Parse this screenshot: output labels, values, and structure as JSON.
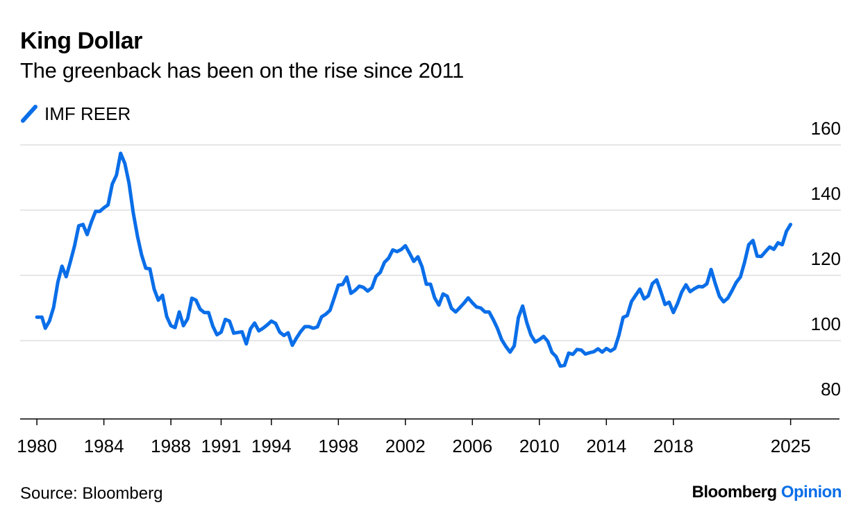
{
  "title": "King Dollar",
  "subtitle": "The greenback has been on the rise since 2011",
  "source": "Source: Bloomberg",
  "brand": {
    "name": "Bloomberg",
    "section": "Opinion"
  },
  "colors": {
    "series": "#0a6ee8",
    "grid": "#e6e6e6",
    "axis": "#000000",
    "brand_accent": "#0a6ee8"
  },
  "chart_data": {
    "type": "line",
    "title": "King Dollar",
    "subtitle": "The greenback has been on the rise since 2011",
    "xlabel": "",
    "ylabel": "",
    "xlim": [
      1979,
      2028
    ],
    "ylim": [
      76,
      164
    ],
    "yticks": [
      160,
      140,
      120,
      100,
      80
    ],
    "y_axis_side": "right",
    "xticks": [
      {
        "value": 1980,
        "label": "1980"
      },
      {
        "value": 1984,
        "label": "1984"
      },
      {
        "value": 1988,
        "label": "1988"
      },
      {
        "value": 1991,
        "label": "1991"
      },
      {
        "value": 1994,
        "label": "1994"
      },
      {
        "value": 1998,
        "label": "1998"
      },
      {
        "value": 2002,
        "label": "2002"
      },
      {
        "value": 2006,
        "label": "2006"
      },
      {
        "value": 2010,
        "label": "2010"
      },
      {
        "value": 2014,
        "label": "2014"
      },
      {
        "value": 2018,
        "label": "2018"
      },
      {
        "value": 2025,
        "label": "2025"
      }
    ],
    "grid": true,
    "legend": {
      "position": "top-left",
      "entries": [
        "IMF REER"
      ]
    },
    "series": [
      {
        "name": "IMF REER",
        "x": [
          1980.0,
          1980.3,
          1980.5,
          1980.75,
          1981.0,
          1981.25,
          1981.5,
          1981.75,
          1982.0,
          1982.25,
          1982.5,
          1982.75,
          1983.0,
          1983.25,
          1983.5,
          1983.75,
          1984.0,
          1984.25,
          1984.5,
          1984.75,
          1985.0,
          1985.25,
          1985.5,
          1985.75,
          1986.0,
          1986.25,
          1986.5,
          1986.75,
          1987.0,
          1987.25,
          1987.5,
          1987.75,
          1988.0,
          1988.25,
          1988.5,
          1988.75,
          1989.0,
          1989.25,
          1989.5,
          1989.75,
          1990.0,
          1990.25,
          1990.5,
          1990.75,
          1991.0,
          1991.25,
          1991.5,
          1991.75,
          1992.0,
          1992.25,
          1992.5,
          1992.75,
          1993.0,
          1993.25,
          1993.5,
          1993.75,
          1994.0,
          1994.25,
          1994.5,
          1994.75,
          1995.0,
          1995.25,
          1995.5,
          1995.75,
          1996.0,
          1996.25,
          1996.5,
          1996.75,
          1997.0,
          1997.25,
          1997.5,
          1997.75,
          1998.0,
          1998.25,
          1998.5,
          1998.75,
          1999.0,
          1999.25,
          1999.5,
          1999.75,
          2000.0,
          2000.25,
          2000.5,
          2000.75,
          2001.0,
          2001.25,
          2001.5,
          2001.75,
          2002.0,
          2002.25,
          2002.5,
          2002.75,
          2003.0,
          2003.25,
          2003.5,
          2003.75,
          2004.0,
          2004.25,
          2004.5,
          2004.75,
          2005.0,
          2005.25,
          2005.5,
          2005.75,
          2006.0,
          2006.25,
          2006.5,
          2006.75,
          2007.0,
          2007.25,
          2007.5,
          2007.75,
          2008.0,
          2008.25,
          2008.5,
          2008.75,
          2009.0,
          2009.25,
          2009.5,
          2009.75,
          2010.0,
          2010.25,
          2010.5,
          2010.75,
          2011.0,
          2011.25,
          2011.5,
          2011.75,
          2012.0,
          2012.25,
          2012.5,
          2012.75,
          2013.0,
          2013.25,
          2013.5,
          2013.75,
          2014.0,
          2014.25,
          2014.5,
          2014.75,
          2015.0,
          2015.25,
          2015.5,
          2015.75,
          2016.0,
          2016.25,
          2016.5,
          2016.75,
          2017.0,
          2017.25,
          2017.5,
          2017.75,
          2018.0,
          2018.25,
          2018.5,
          2018.75,
          2019.0,
          2019.25,
          2019.5,
          2019.75,
          2020.0,
          2020.25,
          2020.5,
          2020.75,
          2021.0,
          2021.25,
          2021.5,
          2021.75,
          2022.0,
          2022.25,
          2022.5,
          2022.75,
          2023.0,
          2023.25,
          2023.5,
          2023.75,
          2024.0,
          2024.25,
          2024.5,
          2024.75,
          2025.0
        ],
        "values": [
          107.2,
          107.2,
          103.8,
          106.0,
          110.2,
          117.9,
          122.8,
          119.6,
          124.2,
          129.1,
          135.2,
          135.6,
          132.5,
          136.3,
          139.6,
          139.6,
          140.7,
          141.6,
          148.0,
          150.7,
          157.4,
          154.3,
          148.3,
          139.3,
          132.1,
          126.3,
          122.2,
          122.0,
          115.8,
          112.4,
          113.9,
          107.4,
          104.6,
          104.0,
          108.8,
          104.6,
          106.7,
          113.0,
          112.4,
          109.6,
          108.6,
          108.6,
          104.5,
          101.8,
          102.6,
          106.5,
          106.0,
          102.3,
          102.5,
          102.7,
          99.0,
          103.6,
          105.4,
          103.0,
          103.8,
          104.8,
          106.0,
          105.3,
          102.6,
          101.6,
          102.4,
          98.6,
          100.8,
          102.8,
          104.3,
          104.3,
          103.8,
          104.2,
          107.3,
          108.1,
          109.3,
          113.1,
          117.0,
          117.2,
          119.5,
          114.5,
          115.4,
          116.7,
          116.3,
          115.2,
          116.2,
          119.7,
          120.9,
          124.0,
          125.3,
          127.8,
          127.3,
          127.9,
          129.1,
          126.8,
          124.3,
          125.7,
          122.6,
          117.3,
          117.3,
          113.1,
          110.9,
          114.3,
          113.6,
          109.9,
          108.8,
          110.1,
          111.5,
          113.1,
          111.6,
          110.3,
          110.0,
          108.8,
          108.8,
          106.4,
          103.7,
          100.3,
          98.2,
          96.5,
          98.4,
          107.1,
          110.6,
          105.5,
          101.7,
          99.6,
          100.3,
          101.3,
          99.8,
          96.4,
          95.1,
          92.2,
          92.4,
          96.2,
          95.8,
          97.3,
          97.1,
          95.9,
          96.3,
          96.6,
          97.5,
          96.5,
          97.6,
          96.8,
          97.6,
          101.7,
          107.1,
          107.7,
          112.0,
          113.9,
          115.8,
          112.8,
          113.7,
          117.5,
          118.6,
          115.0,
          111.1,
          111.8,
          108.6,
          111.4,
          114.9,
          117.1,
          115.0,
          115.9,
          116.6,
          116.5,
          117.4,
          121.8,
          117.5,
          113.6,
          111.9,
          113.0,
          115.3,
          117.8,
          119.5,
          124.0,
          129.4,
          130.7,
          125.9,
          125.8,
          127.3,
          128.7,
          128.0,
          130.0,
          129.4,
          133.5,
          135.6
        ]
      }
    ]
  }
}
